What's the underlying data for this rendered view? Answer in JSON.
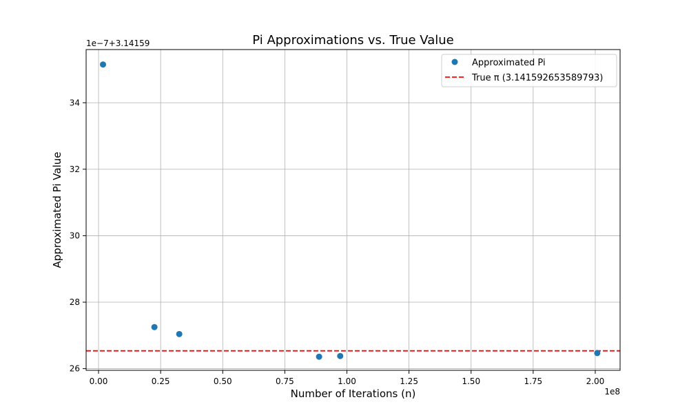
{
  "chart_data": {
    "type": "scatter",
    "title": "Pi Approximations vs. True Value",
    "xlabel": "Number of Iterations (n)",
    "ylabel": "Approximated Pi Value",
    "x_offset_label": "1e8",
    "y_offset_label": "1e−7+3.14159",
    "xlim": [
      -0.05,
      2.1
    ],
    "ylim": [
      25.95,
      35.6
    ],
    "x_ticks": [
      0.0,
      0.25,
      0.5,
      0.75,
      1.0,
      1.25,
      1.5,
      1.75,
      2.0
    ],
    "x_tick_labels": [
      "0.00",
      "0.25",
      "0.50",
      "0.75",
      "1.00",
      "1.25",
      "1.50",
      "1.75",
      "2.00"
    ],
    "y_ticks": [
      26,
      28,
      30,
      32,
      34
    ],
    "y_tick_labels": [
      "26",
      "28",
      "30",
      "32",
      "34"
    ],
    "grid": true,
    "legend_position": "top-right",
    "series": [
      {
        "name": "Approximated Pi",
        "kind": "scatter",
        "color": "#1f77b4",
        "x": [
          0.018,
          0.225,
          0.325,
          0.888,
          0.973,
          2.008
        ],
        "y": [
          35.15,
          27.25,
          27.04,
          26.36,
          26.38,
          26.47
        ]
      },
      {
        "name": "True π (3.141592653589793)",
        "kind": "hline",
        "color": "#ff0000",
        "y": 26.536
      }
    ]
  }
}
